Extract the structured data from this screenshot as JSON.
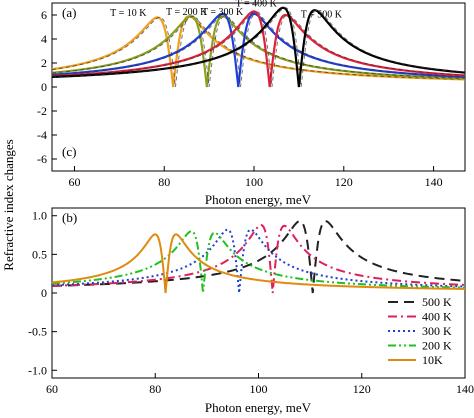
{
  "chart_data": [
    {
      "panel": "top",
      "type": "line",
      "panel_labels": [
        "(a)",
        "(c)"
      ],
      "xlabel": "Photon energy, meV",
      "ylabel": "Refractive index changes",
      "xlim": [
        55,
        147
      ],
      "ylim": [
        -7,
        7
      ],
      "xticks": [
        60,
        80,
        100,
        120,
        140
      ],
      "yticks": [
        -6,
        -4,
        -2,
        0,
        2,
        4,
        6
      ],
      "grid": false,
      "annotations": [
        {
          "text": "T = 10 K",
          "x": 72,
          "y": 5.9
        },
        {
          "text": "T = 200 K",
          "x": 85,
          "y": 6.0
        },
        {
          "text": "T = 300 K",
          "x": 93,
          "y": 6.0
        },
        {
          "text": "T = 400 K",
          "x": 100.5,
          "y": 6.7
        },
        {
          "text": "T = 500 K",
          "x": 115,
          "y": 5.8
        }
      ],
      "series": [
        {
          "color": "#f0a020",
          "peak_x": 78.5,
          "trough_x": 85.5,
          "peak": 5.8,
          "trough": -5.9,
          "dashed_overlay": true
        },
        {
          "color": "#8aa020",
          "peak_x": 86,
          "trough_x": 93,
          "peak": 5.9,
          "trough": -5.9,
          "dashed_overlay": true
        },
        {
          "color": "#1f3fd8",
          "peak_x": 93,
          "trough_x": 100,
          "peak": 6.1,
          "trough": -6.1,
          "dashed_overlay": true
        },
        {
          "color": "#e0203a",
          "peak_x": 100,
          "trough_x": 107,
          "peak": 6.3,
          "trough": -6.0,
          "dashed_overlay": true
        },
        {
          "color": "#000000",
          "peak_x": 106.5,
          "trough_x": 113.5,
          "peak": 6.6,
          "trough": -6.4,
          "dashed_overlay": true
        }
      ]
    },
    {
      "panel": "bottom",
      "type": "line",
      "panel_label": "(b)",
      "xlabel": "Photon energy, meV",
      "ylabel": "Refractive index changes",
      "xlim": [
        60,
        140
      ],
      "ylim": [
        -1.1,
        1.1
      ],
      "xticks": [
        60,
        80,
        100,
        120,
        140
      ],
      "yticks": [
        -1.0,
        -0.5,
        0,
        0.5,
        1.0
      ],
      "ytick_labels": [
        "-1.0",
        "-0.5",
        "0",
        "0.5",
        "1.0"
      ],
      "grid": false,
      "legend_position": "bottom-right",
      "series": [
        {
          "name": "500 K",
          "color": "#222222",
          "style": "dash",
          "peak_x": 113,
          "trough_x": 108,
          "peak": 0.93,
          "trough": -0.93
        },
        {
          "name": "400 K",
          "color": "#e0205a",
          "style": "dashdot",
          "peak_x": 105,
          "trough_x": 100.5,
          "peak": 0.88,
          "trough": -0.87
        },
        {
          "name": "300 K",
          "color": "#2040d0",
          "style": "dot",
          "peak_x": 98.5,
          "trough_x": 94,
          "peak": 0.82,
          "trough": -0.82
        },
        {
          "name": "200 K",
          "color": "#20c020",
          "style": "dashdotdot",
          "peak_x": 91.5,
          "trough_x": 87,
          "peak": 0.8,
          "trough": -0.78
        },
        {
          "name": "10K",
          "color": "#e08a10",
          "style": "solid",
          "peak_x": 84,
          "trough_x": 80,
          "peak": 0.76,
          "trough": -0.76
        }
      ]
    }
  ]
}
